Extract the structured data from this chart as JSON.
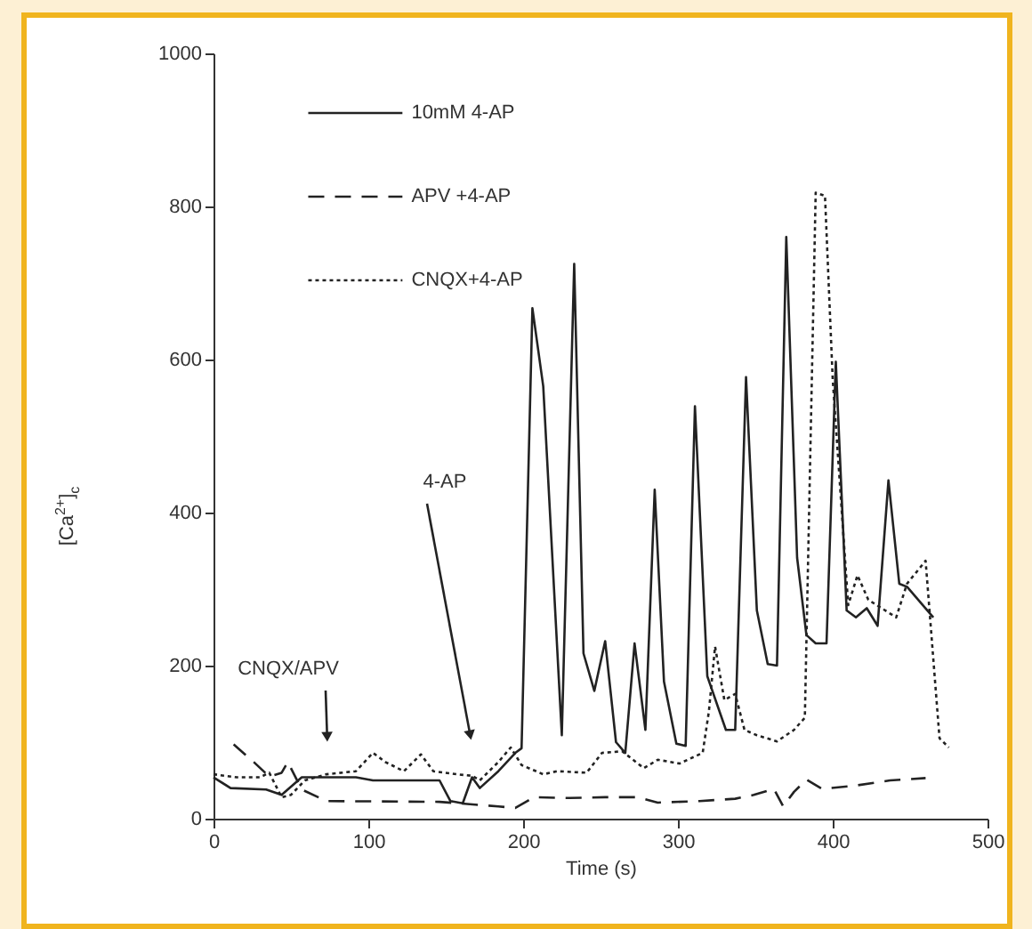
{
  "chart_data": {
    "type": "line",
    "xlabel": "Time (s)",
    "ylabel": "[Ca$^{2+}$]$_{c}$",
    "xlim": [
      0,
      500
    ],
    "ylim": [
      0,
      1000
    ],
    "xticks": [
      0,
      100,
      200,
      300,
      400,
      500
    ],
    "yticks": [
      0,
      200,
      400,
      600,
      800,
      1000
    ],
    "grid": false,
    "legend": "top left",
    "marker": "none",
    "series": [
      {
        "name": "10mM 4-AP",
        "color": "#222222",
        "line_style": "solid",
        "x": [
          0,
          11,
          34,
          44,
          57,
          92,
          103,
          146,
          153,
          161,
          167,
          172,
          184,
          195,
          199,
          206,
          213,
          225,
          233,
          239,
          246,
          253,
          260,
          266,
          272,
          279,
          285,
          291,
          299,
          305,
          311,
          319,
          331,
          337,
          344,
          351,
          358,
          364,
          370,
          377,
          383,
          389,
          396,
          402,
          409,
          415,
          422,
          429,
          436,
          443,
          448,
          465
        ],
        "values": [
          54,
          40,
          38,
          31,
          54,
          54,
          50,
          50,
          23,
          20,
          54,
          40,
          62,
          86,
          92,
          667,
          565,
          109,
          725,
          216,
          167,
          232,
          100,
          86,
          229,
          116,
          430,
          179,
          98,
          95,
          539,
          186,
          116,
          116,
          577,
          272,
          202,
          200,
          760,
          341,
          240,
          229,
          229,
          597,
          272,
          263,
          275,
          252,
          442,
          307,
          303,
          263
        ]
      },
      {
        "name": "APV +4-AP",
        "color": "#222222",
        "line_style": "dashed",
        "x": [
          13,
          26,
          36,
          44,
          48,
          57,
          73,
          146,
          184,
          195,
          207,
          230,
          253,
          274,
          287,
          314,
          337,
          349,
          362,
          368,
          375,
          383,
          393,
          414,
          437,
          460
        ],
        "values": [
          97,
          74,
          55,
          60,
          74,
          38,
          23,
          22,
          16,
          14,
          28,
          27,
          28,
          28,
          21,
          23,
          26,
          31,
          39,
          16,
          35,
          51,
          39,
          43,
          50,
          53
        ]
      },
      {
        "name": "CNQX+4-AP",
        "color": "#222222",
        "line_style": "dotted",
        "x": [
          0,
          15,
          30,
          36,
          44,
          50,
          59,
          73,
          92,
          103,
          111,
          123,
          134,
          142,
          157,
          167,
          172,
          184,
          192,
          199,
          213,
          222,
          241,
          251,
          264,
          278,
          287,
          301,
          316,
          320,
          324,
          330,
          337,
          343,
          351,
          364,
          375,
          382,
          389,
          395,
          400,
          410,
          416,
          423,
          441,
          448,
          460,
          469,
          475
        ],
        "values": [
          58,
          54,
          54,
          60,
          28,
          31,
          50,
          58,
          62,
          86,
          74,
          62,
          84,
          62,
          58,
          56,
          50,
          74,
          93,
          70,
          58,
          62,
          60,
          86,
          88,
          66,
          77,
          72,
          86,
          140,
          225,
          155,
          163,
          116,
          109,
          101,
          116,
          132,
          818,
          814,
          574,
          279,
          318,
          286,
          263,
          307,
          337,
          105,
          93
        ]
      }
    ],
    "annotations": [
      "CNQX/APV",
      "4-AP"
    ]
  }
}
